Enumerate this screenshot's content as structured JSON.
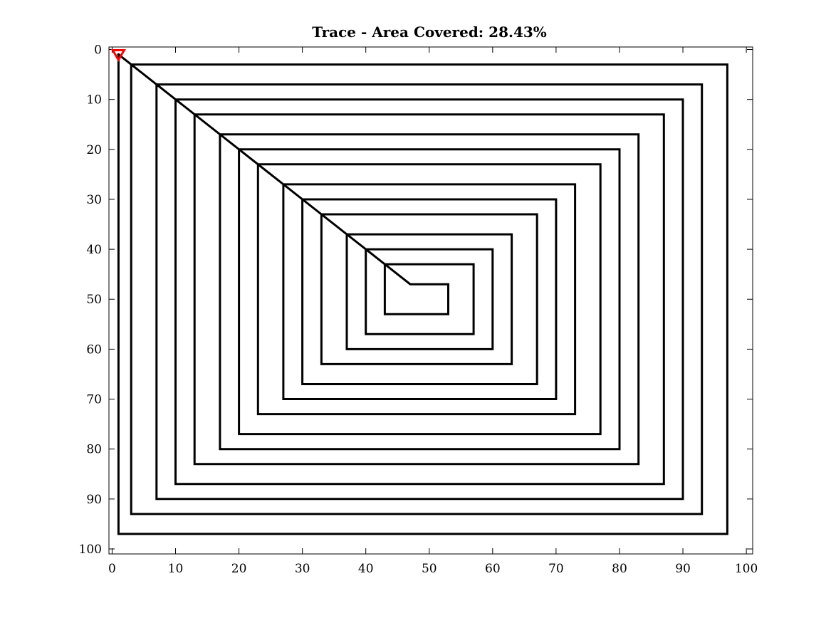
{
  "chart_data": {
    "type": "line",
    "title": "Trace - Area Covered: 28.43%",
    "xlabel": "",
    "ylabel": "",
    "xlim": [
      -0.5,
      101
    ],
    "ylim": [
      -0.5,
      101
    ],
    "y_reversed": true,
    "grid": false,
    "x_ticks": [
      0,
      10,
      20,
      30,
      40,
      50,
      60,
      70,
      80,
      90,
      100
    ],
    "y_ticks": [
      0,
      10,
      20,
      30,
      40,
      50,
      60,
      70,
      80,
      90,
      100
    ],
    "series": [
      {
        "color": "#000000",
        "marker": "none",
        "x": [
          1,
          1,
          97,
          97,
          3,
          3,
          93,
          93,
          7,
          7,
          90,
          90,
          10,
          10,
          87,
          87,
          13,
          13,
          83,
          83,
          17,
          17,
          80,
          80,
          20,
          20,
          77,
          77,
          23,
          23,
          73,
          73,
          27,
          27,
          70,
          70,
          30,
          30,
          67,
          67,
          33,
          33,
          63,
          63,
          37,
          37,
          60,
          60,
          40,
          40,
          57,
          57,
          43,
          43,
          53,
          53,
          47,
          1
        ],
        "y": [
          1,
          97,
          97,
          3,
          3,
          93,
          93,
          7,
          7,
          90,
          90,
          10,
          10,
          87,
          87,
          13,
          13,
          83,
          83,
          17,
          17,
          80,
          80,
          20,
          20,
          77,
          77,
          23,
          23,
          73,
          73,
          27,
          27,
          70,
          70,
          30,
          30,
          67,
          67,
          33,
          33,
          63,
          63,
          37,
          37,
          60,
          60,
          40,
          40,
          57,
          57,
          43,
          43,
          53,
          53,
          47,
          47,
          1
        ]
      }
    ],
    "start_marker": {
      "x": 1,
      "y": 1,
      "shape": "triangle-down",
      "color": "#ff0000"
    }
  }
}
